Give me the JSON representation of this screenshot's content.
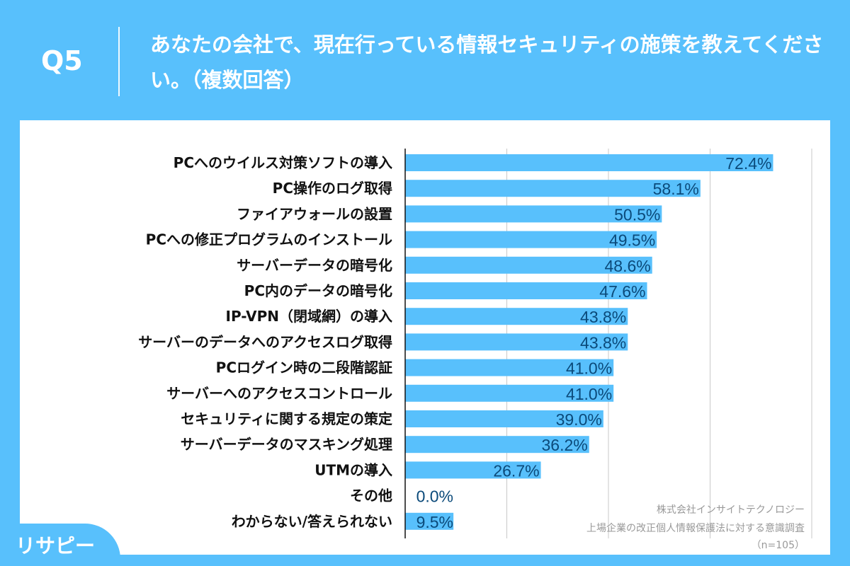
{
  "header": {
    "question": "Q5",
    "title": "あなたの会社で、現在行っている情報セキュリティの施策を教えてください。（複数回答）"
  },
  "colors": {
    "background": "#58c0fc",
    "bar": "#58c0fc",
    "value_label": "#0b4a7a"
  },
  "chart_data": {
    "type": "bar",
    "orientation": "horizontal",
    "xlim": [
      0,
      80
    ],
    "grid": true,
    "categories": [
      "PCへのウイルス対策ソフトの導入",
      "PC操作のログ取得",
      "ファイアウォールの設置",
      "PCへの修正プログラムのインストール",
      "サーバーデータの暗号化",
      "PC内のデータの暗号化",
      "IP-VPN（閉域網）の導入",
      "サーバーのデータへのアクセスログ取得",
      "PCログイン時の二段階認証",
      "サーバーへのアクセスコントロール",
      "セキュリティに関する規定の策定",
      "サーバーデータのマスキング処理",
      "UTMの導入",
      "その他",
      "わからない/答えられない"
    ],
    "values": [
      72.4,
      58.1,
      50.5,
      49.5,
      48.6,
      47.6,
      43.8,
      43.8,
      41.0,
      41.0,
      39.0,
      36.2,
      26.7,
      0.0,
      9.5
    ],
    "value_labels": [
      "72.4%",
      "58.1%",
      "50.5%",
      "49.5%",
      "48.6%",
      "47.6%",
      "43.8%",
      "43.8%",
      "41.0%",
      "41.0%",
      "39.0%",
      "36.2%",
      "26.7%",
      "0.0%",
      "9.5%"
    ]
  },
  "notes": {
    "company": "株式会社インサイトテクノロジー",
    "survey": "上場企業の改正個人情報保護法に対する意識調査",
    "sample": "（n=105）"
  },
  "logo": {
    "text": "リサピー"
  }
}
